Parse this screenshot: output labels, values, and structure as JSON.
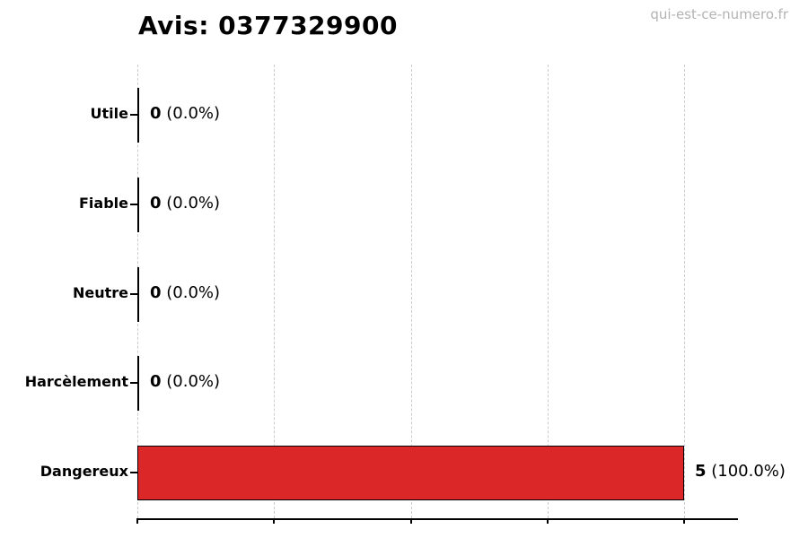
{
  "watermark": "qui-est-ce-numero.fr",
  "chart_data": {
    "type": "bar",
    "orientation": "horizontal",
    "title": "Avis: 0377329900",
    "categories": [
      "Utile",
      "Fiable",
      "Neutre",
      "Harcèlement",
      "Dangereux"
    ],
    "values": [
      0,
      0,
      0,
      0,
      5
    ],
    "percent_labels": [
      "(0.0%)",
      "(0.0%)",
      "(0.0%)",
      "(0.0%)",
      "(100.0%)"
    ],
    "xlabel": "",
    "ylabel": "",
    "xlim": [
      0,
      5.5
    ],
    "xticks": [
      0,
      1.25,
      2.5,
      3.75,
      5
    ],
    "grid": "vertical-dashed",
    "legend": "none",
    "bar_color": "#dc2728",
    "bar_edge_color": "#000000",
    "gridline_color": "#cccccc",
    "watermark_color": "#b3b3b3"
  }
}
